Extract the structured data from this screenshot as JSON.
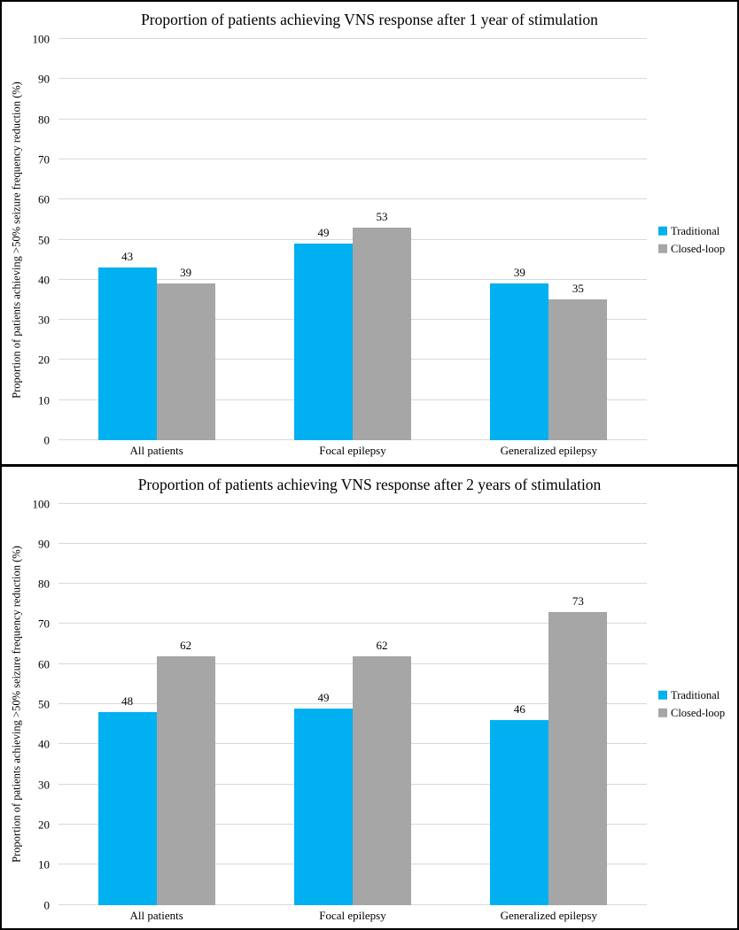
{
  "figure": {
    "colors": {
      "traditional": "#00B0F0",
      "closed_loop": "#A6A6A6",
      "gridline": "#D9D9D9",
      "border": "#000000",
      "background": "#FFFFFF"
    }
  },
  "chart_data": [
    {
      "type": "bar",
      "title": "Proportion of patients achieving VNS response after 1 year of stimulation",
      "xlabel": "",
      "ylabel": "Proportion of patients achieving >50% seizure frequency reduction (%)",
      "categories": [
        "All patients",
        "Focal epilepsy",
        "Generalized epilepsy"
      ],
      "series": [
        {
          "name": "Traditional",
          "color": "#00B0F0",
          "values": [
            43,
            49,
            39
          ]
        },
        {
          "name": "Closed-loop",
          "color": "#A6A6A6",
          "values": [
            39,
            53,
            35
          ]
        }
      ],
      "ylim": [
        0,
        100
      ],
      "yticks": [
        0,
        10,
        20,
        30,
        40,
        50,
        60,
        70,
        80,
        90,
        100
      ],
      "grid": true,
      "data_labels": true,
      "legend_position": "right"
    },
    {
      "type": "bar",
      "title": "Proportion of patients achieving VNS response after 2 years of stimulation",
      "xlabel": "",
      "ylabel": "Proportion of patients achieving >50% seizure frequency reduction (%)",
      "categories": [
        "All patients",
        "Focal epilepsy",
        "Generalized epilepsy"
      ],
      "series": [
        {
          "name": "Traditional",
          "color": "#00B0F0",
          "values": [
            48,
            49,
            46
          ]
        },
        {
          "name": "Closed-loop",
          "color": "#A6A6A6",
          "values": [
            62,
            62,
            73
          ]
        }
      ],
      "ylim": [
        0,
        100
      ],
      "yticks": [
        0,
        10,
        20,
        30,
        40,
        50,
        60,
        70,
        80,
        90,
        100
      ],
      "grid": true,
      "data_labels": true,
      "legend_position": "right"
    }
  ]
}
